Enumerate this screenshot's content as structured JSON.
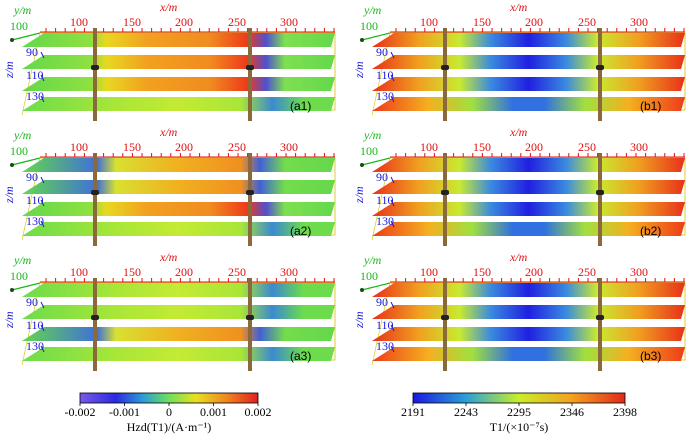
{
  "colors": {
    "x_axis": "#e01010",
    "y_axis": "#17b817",
    "z_axis": "#1a1ad8",
    "hzd_low": "#2a2ad8",
    "hzd_mid": "#6ee05a",
    "hzd_high": "#e82020",
    "t1_low": "#1a1ae0",
    "t1_mid": "#c8ee2a",
    "t1_high": "#e82a1a",
    "pipe": "#8a6a3a",
    "box": "#d4c400"
  },
  "axes": {
    "x_label": "x/m",
    "y_label": "y/m",
    "z_label": "z/m",
    "x_ticks": [
      "100",
      "150",
      "200",
      "250",
      "300"
    ],
    "y_tick": "100",
    "z_ticks": [
      "90",
      "110",
      "130"
    ]
  },
  "panels": [
    {
      "label": "(a1)",
      "field": "Hzd"
    },
    {
      "label": "(b1)",
      "field": "T1"
    },
    {
      "label": "(a2)",
      "field": "Hzd"
    },
    {
      "label": "(b2)",
      "field": "T1"
    },
    {
      "label": "(a3)",
      "field": "Hzd"
    },
    {
      "label": "(b3)",
      "field": "T1"
    }
  ],
  "colorbars": {
    "hzd": {
      "ticks": [
        "-0.002",
        "-0.001",
        "0",
        "0.001",
        "0.002"
      ],
      "title": "Hzd(T1)/(A·m⁻¹)"
    },
    "t1": {
      "ticks": [
        "2191",
        "2243",
        "2295",
        "2346",
        "2398"
      ],
      "title": "T1/(×10⁻⁷s)"
    }
  }
}
